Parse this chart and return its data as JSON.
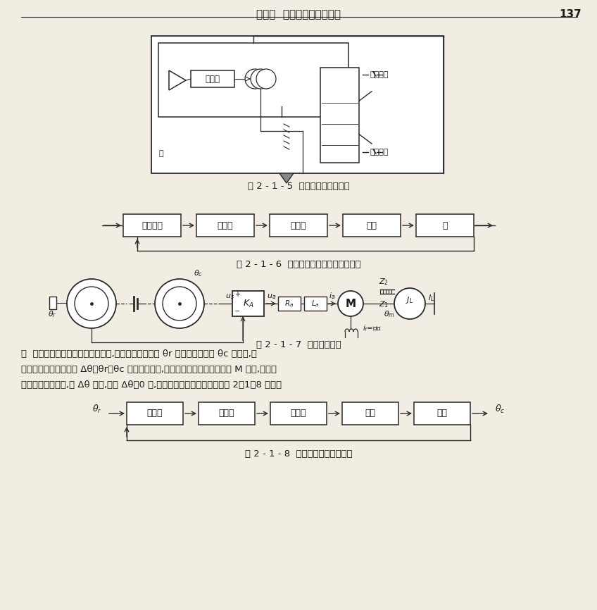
{
  "page_title": "第一章  自动控制的一般概念",
  "page_number": "137",
  "fig215_caption": "图 2 - 1 - 5  大门开、关控制系统",
  "fig216_caption": "图 2 - 1 - 6  大门开、关控制系统的方框图",
  "fig216_blocks": [
    "桥式电路",
    "放大器",
    "电动机",
    "绞盘",
    "门"
  ],
  "fig217_caption": "图 2 - 1 - 7  位置随动系统",
  "sol_line1": "解  由一对电位器组成误差角检测器,当输入手柄的转角 θr 与输出轴的转角 θc 不同时,检",
  "sol_line2": "测器输出一个与误差角 Δθ＝θr－θc 成正比的电压,经放大器放大后驱动电动机 M 转动,经齿轮",
  "sol_line3": "机构带动负载转动,使 Δθ 减小,直到 Δθ＝0 时,电机停止。系统的方框图如图 2－1－8 所示。",
  "fig218_caption": "图 2 - 1 - 8  位置随动系统的方框图",
  "fig218_blocks": [
    "电位器",
    "放大器",
    "电动机",
    "齿轮",
    "负载"
  ],
  "fig218_input": "θr",
  "fig218_output": "θc",
  "bg": "#f2ede3",
  "lc": "#2a2a2a",
  "tc": "#1a1a1a"
}
